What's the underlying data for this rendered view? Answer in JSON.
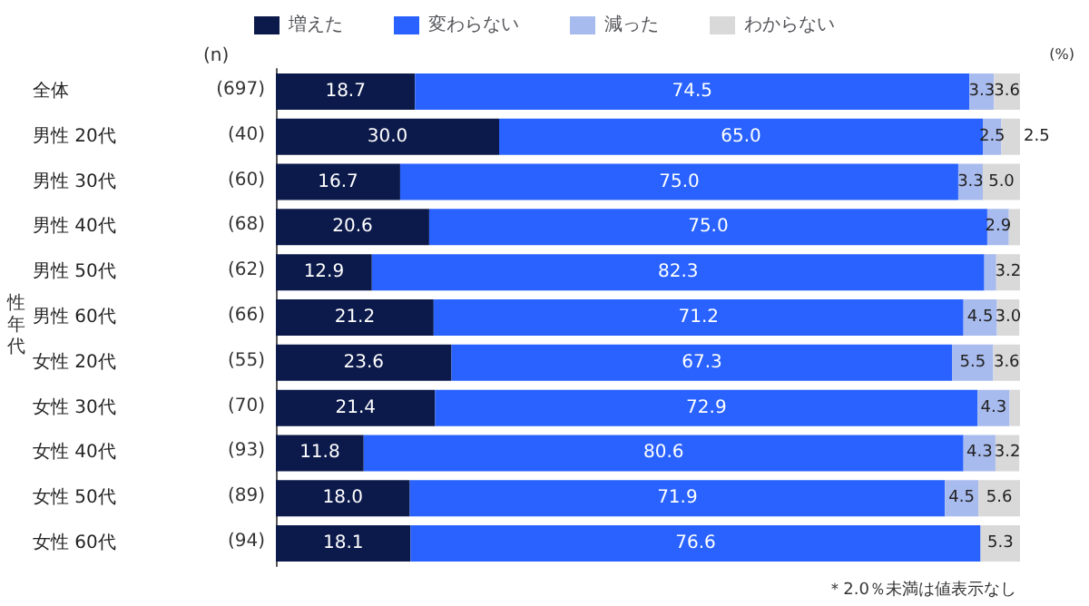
{
  "chart_data": {
    "type": "bar",
    "orientation": "horizontal",
    "stacked": true,
    "categories": [
      "全体",
      "男性 20代",
      "男性 30代",
      "男性 40代",
      "男性 50代",
      "男性 60代",
      "女性 20代",
      "女性 30代",
      "女性 40代",
      "女性 50代",
      "女性 60代"
    ],
    "series": [
      {
        "name": "増えた",
        "color": "#0c1a4b",
        "values": [
          18.7,
          30.0,
          16.7,
          20.6,
          12.9,
          21.2,
          23.6,
          21.4,
          11.8,
          18.0,
          18.1
        ],
        "value_labels": [
          "18.7",
          "30.0",
          "16.7",
          "20.6",
          "12.9",
          "21.2",
          "23.6",
          "21.4",
          "11.8",
          "18.0",
          "18.1"
        ]
      },
      {
        "name": "変わらない",
        "color": "#2962ff",
        "values": [
          74.5,
          65.0,
          75.0,
          75.0,
          82.3,
          71.2,
          67.3,
          72.9,
          80.6,
          71.9,
          76.6
        ],
        "value_labels": [
          "74.5",
          "65.0",
          "75.0",
          "75.0",
          "82.3",
          "71.2",
          "67.3",
          "72.9",
          "80.6",
          "71.9",
          "76.6"
        ]
      },
      {
        "name": "減った",
        "color": "#a8bbee",
        "values": [
          3.3,
          2.5,
          3.3,
          2.9,
          1.6,
          4.5,
          5.5,
          4.3,
          4.3,
          4.5,
          0.0
        ],
        "value_labels": [
          "3.3",
          "2.5",
          "3.3",
          "2.9",
          null,
          "4.5",
          "5.5",
          "4.3",
          "4.3",
          "4.5",
          null
        ]
      },
      {
        "name": "わからない",
        "color": "#d9d9d9",
        "values": [
          3.6,
          2.5,
          5.0,
          1.5,
          3.2,
          3.0,
          3.6,
          1.4,
          3.2,
          5.6,
          5.3
        ],
        "value_labels": [
          "3.6",
          "2.5",
          "5.0",
          null,
          "3.2",
          "3.0",
          "3.6",
          null,
          "3.2",
          "5.6",
          "5.3"
        ]
      }
    ],
    "xlim": [
      0,
      100
    ],
    "tick_labels": "y",
    "legend": "top",
    "annotations": [
      "(n)",
      "(697)",
      "(40)",
      "(60)",
      "(68)",
      "(62)",
      "(66)",
      "(55)",
      "(70)",
      "(93)",
      "(89)",
      "(94)",
      "性年代",
      "(%)",
      "＊2.0％未満は値表示なし"
    ]
  }
}
